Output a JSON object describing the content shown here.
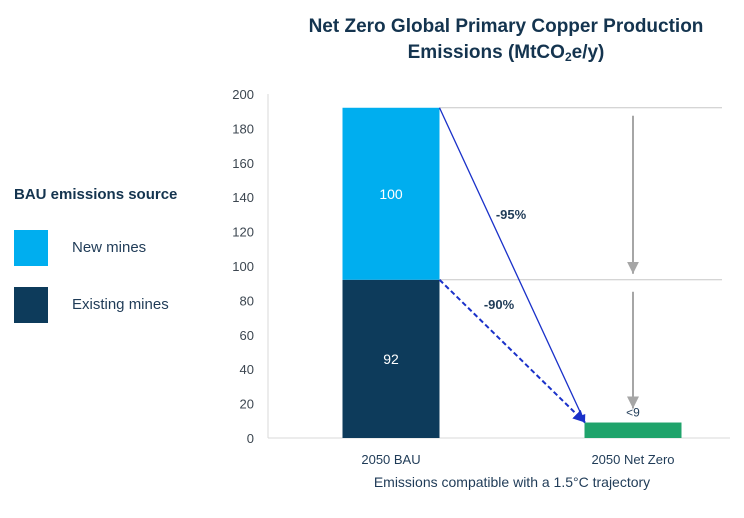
{
  "title_line1": "Net Zero Global Primary Copper Production",
  "title_line2_pre": "Emissions (MtCO",
  "title_line2_sub": "2",
  "title_line2_post": "e/y)",
  "legend": {
    "title": "BAU emissions source",
    "items": [
      {
        "label": "New mines",
        "color": "#00aeef"
      },
      {
        "label": "Existing mines",
        "color": "#0d3b5b"
      }
    ]
  },
  "chart_data": {
    "type": "bar",
    "stacked": true,
    "categories": [
      "2050 BAU",
      "2050 Net Zero"
    ],
    "series": [
      {
        "name": "Existing mines",
        "values": [
          92,
          null
        ],
        "color": "#0d3b5b",
        "labels": [
          "92",
          ""
        ]
      },
      {
        "name": "New mines",
        "values": [
          100,
          null
        ],
        "color": "#00aeef",
        "labels": [
          "100",
          ""
        ]
      },
      {
        "values": [
          null,
          9
        ],
        "color": "#1fa36b",
        "labels": [
          "",
          "<9"
        ]
      }
    ],
    "xlabel": "Emissions compatible with a 1.5°C trajectory",
    "ylabel": "",
    "ylim": [
      0,
      200
    ],
    "yticks": [
      0,
      20,
      40,
      60,
      80,
      100,
      120,
      140,
      160,
      180,
      200
    ],
    "annotations": [
      {
        "text": "-95%",
        "from_value": 192,
        "to_value": 9
      },
      {
        "text": "-90%",
        "from_value": 92,
        "to_value": 9
      }
    ],
    "grid": false
  }
}
